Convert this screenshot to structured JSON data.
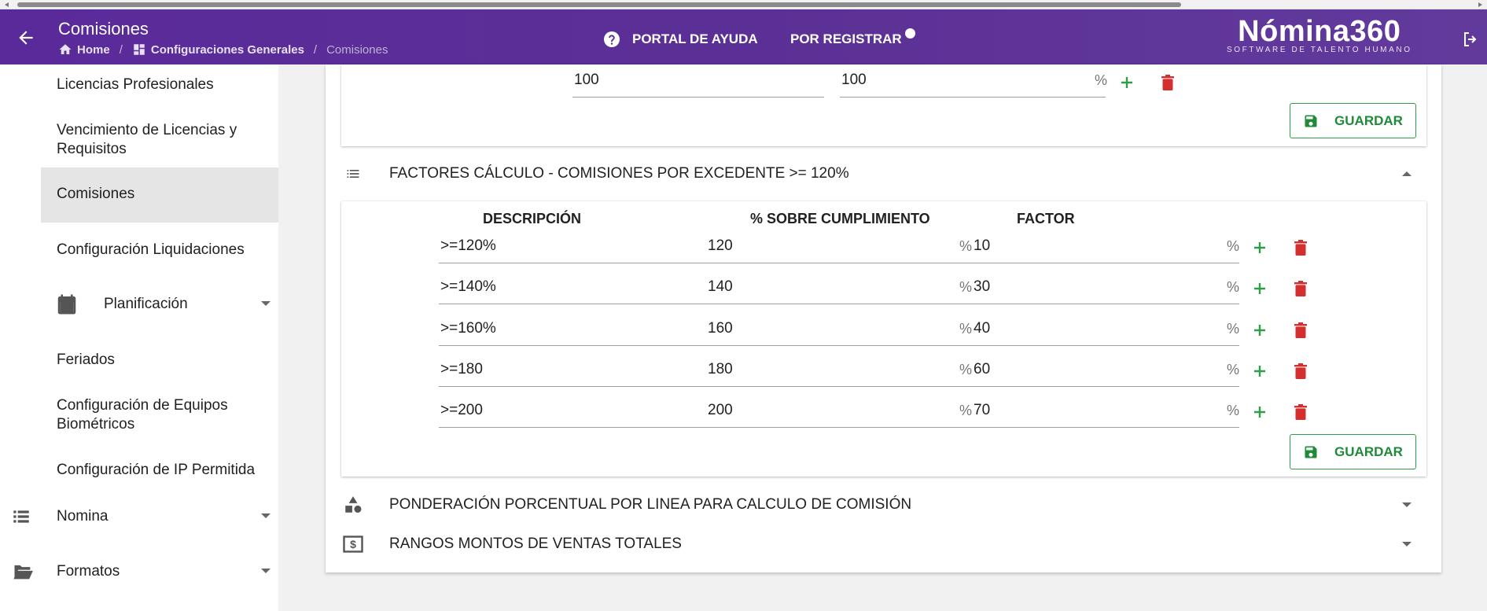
{
  "header": {
    "title": "Comisiones",
    "breadcrumb": {
      "home": "Home",
      "config": "Configuraciones Generales",
      "current": "Comisiones",
      "sep": "/"
    },
    "help_label": "PORTAL DE AYUDA",
    "register_label": "POR REGISTRAR",
    "brand_name": "Nómina360",
    "brand_tagline": "SOFTWARE DE TALENTO HUMANO",
    "accent": "#5b3096"
  },
  "sidebar": {
    "items": [
      {
        "label": "Licencias Profesionales"
      },
      {
        "label": "Vencimiento de Licencias y Requisitos"
      },
      {
        "label": "Comisiones"
      },
      {
        "label": "Configuración Liquidaciones"
      },
      {
        "label": "Feriados"
      },
      {
        "label": "Configuración de Equipos Biométricos"
      },
      {
        "label": "Configuración de IP Permitida"
      }
    ],
    "groups": [
      {
        "label": "Planificación",
        "icon": "calendar-icon"
      },
      {
        "label": "Nomina",
        "icon": "list-icon"
      },
      {
        "label": "Formatos",
        "icon": "folder-open-icon"
      }
    ]
  },
  "top_section": {
    "row": {
      "col1": "100",
      "col2": "100",
      "suffix": "%"
    },
    "save_label": "GUARDAR"
  },
  "factors_section": {
    "title": "FACTORES CÁLCULO - COMISIONES POR EXCEDENTE >= 120%",
    "columns": [
      "DESCRIPCIÓN",
      "% SOBRE CUMPLIMIENTO",
      "FACTOR"
    ],
    "rows": [
      {
        "descripcion": ">=120%",
        "cumplimiento": "120",
        "factor": "10"
      },
      {
        "descripcion": ">=140%",
        "cumplimiento": "140",
        "factor": "30"
      },
      {
        "descripcion": ">=160%",
        "cumplimiento": "160",
        "factor": "40"
      },
      {
        "descripcion": ">=180",
        "cumplimiento": "180",
        "factor": "60"
      },
      {
        "descripcion": ">=200",
        "cumplimiento": "200",
        "factor": "70"
      }
    ],
    "suffix": "%",
    "save_label": "GUARDAR"
  },
  "sections": [
    {
      "title": "PONDERACIÓN PORCENTUAL POR LINEA PARA CALCULO DE COMISIÓN",
      "icon": "shapes-icon"
    },
    {
      "title": "RANGOS MONTOS DE VENTAS TOTALES",
      "icon": "money-icon"
    }
  ],
  "colors": {
    "add": "#2e9e49",
    "delete": "#d32f2f",
    "save": "#1e8a3a"
  }
}
